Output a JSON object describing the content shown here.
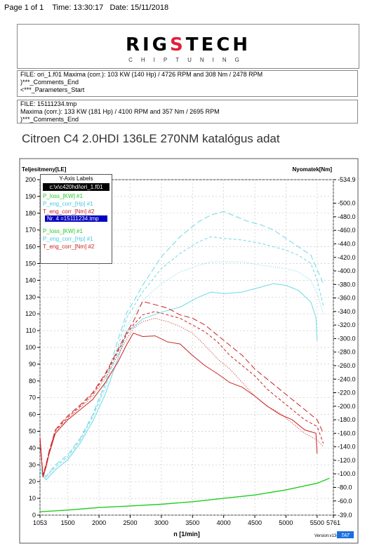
{
  "header": {
    "page": "Page 1 of 1",
    "time_label": "Time:",
    "time": "13:30:17",
    "date_label": "Date:",
    "date": "15/11/2018"
  },
  "logo": {
    "main_left": "RIG",
    "main_accent": "S",
    "main_right": "TECH",
    "sub": "CHIPTUNING"
  },
  "info1": {
    "line1": "FILE: ori_1.f01  Maxima (corr.):  103 KW (140 Hp) /  4726 RPM  and   308 Nm /  2478 RPM",
    "line2": ")***_Comments_End",
    "line3": "<***_Parameters_Start"
  },
  "info2": {
    "line1": "FILE: 15111234.tmp",
    "line2": "Maxima (corr.):  133 KW (181 Hp) /  4100 RPM  and   357 Nm /  2695 RPM",
    "line3": ")***_Comments_End"
  },
  "caption": "Citroen C4 2.0HDI 136LE 270NM katalógus adat",
  "legend": {
    "title": "Y-Axis Labels",
    "selected": "c:\\x\\c420hdi\\ori_1.f01",
    "items1": [
      "P_loss_[KW] #1",
      "P_eng_corr_[Hp] #1",
      "T_eng_corr_[Nm] #2"
    ],
    "highlight": "Nr. 4 =15111234.tmp",
    "items2": [
      "P_loss_[KW] #1",
      "P_eng_corr_[Hp] #1",
      "T_eng_corr_[Nm] #2"
    ]
  },
  "colors": {
    "power": "#6fd8e6",
    "torque": "#cc2020",
    "loss": "#22cc22"
  },
  "chart_data": {
    "type": "line",
    "ylabel_left": "Teljesitmeny[LE]",
    "ylabel_right": "Nyomatek[Nm]",
    "xlabel": "n  [1/min]",
    "version": "Version:v134",
    "tat": "TAT",
    "x_ticks": [
      1053,
      1500,
      2000,
      2500,
      3000,
      3500,
      4000,
      4500,
      5000,
      5500,
      5761
    ],
    "y_left_ticks": [
      0,
      10,
      20,
      30,
      40,
      50,
      60,
      70,
      80,
      90,
      100,
      110,
      120,
      130,
      140,
      150,
      160,
      170,
      180,
      190,
      200
    ],
    "y_right_ticks": [
      "-39.0",
      "-60.0",
      "-80.0",
      "-100.0",
      "-120.0",
      "-140.0",
      "-160.0",
      "-180.0",
      "-200.0",
      "-220.0",
      "-240.0",
      "-260.0",
      "-280.0",
      "-300.0",
      "-320.0",
      "-340.0",
      "-360.0",
      "-380.0",
      "-400.0",
      "-420.0",
      "-440.0",
      "-460.0",
      "-480.0",
      "-500.0",
      "-534.9"
    ],
    "x_range": [
      1053,
      5761
    ],
    "y_left_range": [
      0,
      200
    ],
    "y_right_range": [
      39,
      534.9
    ],
    "series": [
      {
        "axis": "left",
        "style": "solid",
        "color": "power",
        "x": [
          1053,
          1150,
          1300,
          1500,
          1700,
          1900,
          2100,
          2300,
          2450,
          2550,
          2700,
          3000,
          3300,
          3600,
          3800,
          4000,
          4300,
          4600,
          4800,
          5000,
          5200,
          5400,
          5480,
          5500
        ],
        "y": [
          26,
          21,
          27,
          33,
          43,
          56,
          72,
          93,
          110,
          112,
          117,
          121,
          124,
          130,
          133,
          132,
          133,
          136,
          138,
          137,
          134,
          127,
          118,
          104
        ]
      },
      {
        "axis": "left",
        "style": "dotted",
        "color": "power",
        "x": [
          1053,
          1150,
          1300,
          1500,
          1700,
          1900,
          2100,
          2300,
          2450,
          2550,
          2700,
          3000,
          3300,
          3600,
          3800,
          4000,
          4300,
          4600,
          4800,
          5000,
          5200,
          5400,
          5500,
          5600
        ],
        "y": [
          27,
          22,
          28,
          34,
          44,
          58,
          75,
          97,
          113,
          119,
          128,
          138,
          145,
          149,
          151,
          151,
          151,
          149,
          148,
          147,
          145,
          140,
          132,
          120
        ]
      },
      {
        "axis": "left",
        "style": "dashed",
        "color": "power",
        "x": [
          1053,
          1150,
          1300,
          1500,
          1700,
          1900,
          2100,
          2300,
          2450,
          2550,
          2700,
          3000,
          3300,
          3600,
          3800,
          4000,
          4300,
          4600,
          4800,
          5000,
          5200,
          5400,
          5500,
          5600
        ],
        "y": [
          28,
          23,
          29,
          35,
          45,
          59,
          77,
          100,
          118,
          124,
          133,
          147,
          156,
          163,
          166,
          165,
          164,
          162,
          160,
          158,
          155,
          150,
          140,
          125
        ]
      },
      {
        "axis": "left",
        "style": "longdash",
        "color": "power",
        "x": [
          1053,
          1150,
          1300,
          1500,
          1700,
          1900,
          2100,
          2300,
          2450,
          2550,
          2700,
          3000,
          3300,
          3600,
          3800,
          4000,
          4200,
          4400,
          4600,
          4800,
          5000,
          5200,
          5400,
          5600
        ],
        "y": [
          28,
          23,
          30,
          36,
          46,
          60,
          79,
          104,
          121,
          127,
          137,
          154,
          166,
          175,
          179,
          181,
          178,
          175,
          173,
          170,
          165,
          160,
          155,
          138
        ]
      },
      {
        "axis": "right",
        "style": "solid",
        "color": "torque",
        "x": [
          1053,
          1100,
          1150,
          1200,
          1300,
          1400,
          1500,
          1700,
          1900,
          2100,
          2300,
          2450,
          2550,
          2700,
          2900,
          3100,
          3300,
          3500,
          3700,
          3900,
          4100,
          4300,
          4500,
          4700,
          4900,
          5100,
          5300,
          5480,
          5500
        ],
        "y": [
          150,
          95,
          110,
          130,
          160,
          170,
          180,
          195,
          210,
          235,
          265,
          292,
          308,
          303,
          304,
          295,
          292,
          275,
          260,
          248,
          235,
          228,
          215,
          200,
          188,
          180,
          165,
          160,
          130
        ]
      },
      {
        "axis": "right",
        "style": "dotted",
        "color": "torque",
        "x": [
          1053,
          1100,
          1150,
          1200,
          1300,
          1400,
          1500,
          1700,
          1900,
          2100,
          2300,
          2450,
          2550,
          2700,
          2900,
          3100,
          3300,
          3500,
          3700,
          3900,
          4100,
          4300,
          4500,
          4700,
          4900,
          5100,
          5300,
          5500,
          5600
        ],
        "y": [
          152,
          96,
          112,
          132,
          162,
          172,
          182,
          198,
          215,
          242,
          275,
          300,
          315,
          325,
          330,
          325,
          318,
          308,
          290,
          270,
          255,
          235,
          215,
          200,
          190,
          175,
          160,
          150,
          140
        ]
      },
      {
        "axis": "right",
        "style": "dashed",
        "color": "torque",
        "x": [
          1053,
          1100,
          1150,
          1200,
          1300,
          1400,
          1500,
          1700,
          1900,
          2100,
          2300,
          2450,
          2550,
          2700,
          2900,
          3100,
          3300,
          3500,
          3700,
          3900,
          4100,
          4300,
          4500,
          4700,
          4900,
          5100,
          5300,
          5500,
          5600
        ],
        "y": [
          153,
          97,
          113,
          133,
          164,
          174,
          184,
          200,
          218,
          246,
          280,
          307,
          320,
          335,
          340,
          335,
          330,
          320,
          310,
          295,
          275,
          260,
          245,
          225,
          210,
          195,
          180,
          170,
          145
        ]
      },
      {
        "axis": "right",
        "style": "longdash",
        "color": "torque",
        "x": [
          1053,
          1100,
          1150,
          1200,
          1300,
          1400,
          1500,
          1700,
          1900,
          2100,
          2300,
          2450,
          2550,
          2700,
          2900,
          3100,
          3300,
          3500,
          3700,
          3900,
          4100,
          4300,
          4500,
          4700,
          4900,
          5100,
          5300,
          5500,
          5600
        ],
        "y": [
          154,
          98,
          114,
          134,
          165,
          176,
          186,
          202,
          220,
          248,
          283,
          310,
          325,
          355,
          350,
          345,
          335,
          330,
          320,
          305,
          290,
          275,
          255,
          240,
          225,
          210,
          195,
          180,
          160
        ]
      },
      {
        "axis": "left",
        "style": "solid",
        "color": "loss",
        "x": [
          1053,
          1500,
          2000,
          2500,
          3000,
          3500,
          4000,
          4500,
          5000,
          5500,
          5700
        ],
        "y": [
          2,
          3,
          4.5,
          5.5,
          6.5,
          8,
          10,
          12,
          15,
          19,
          22
        ]
      }
    ]
  }
}
